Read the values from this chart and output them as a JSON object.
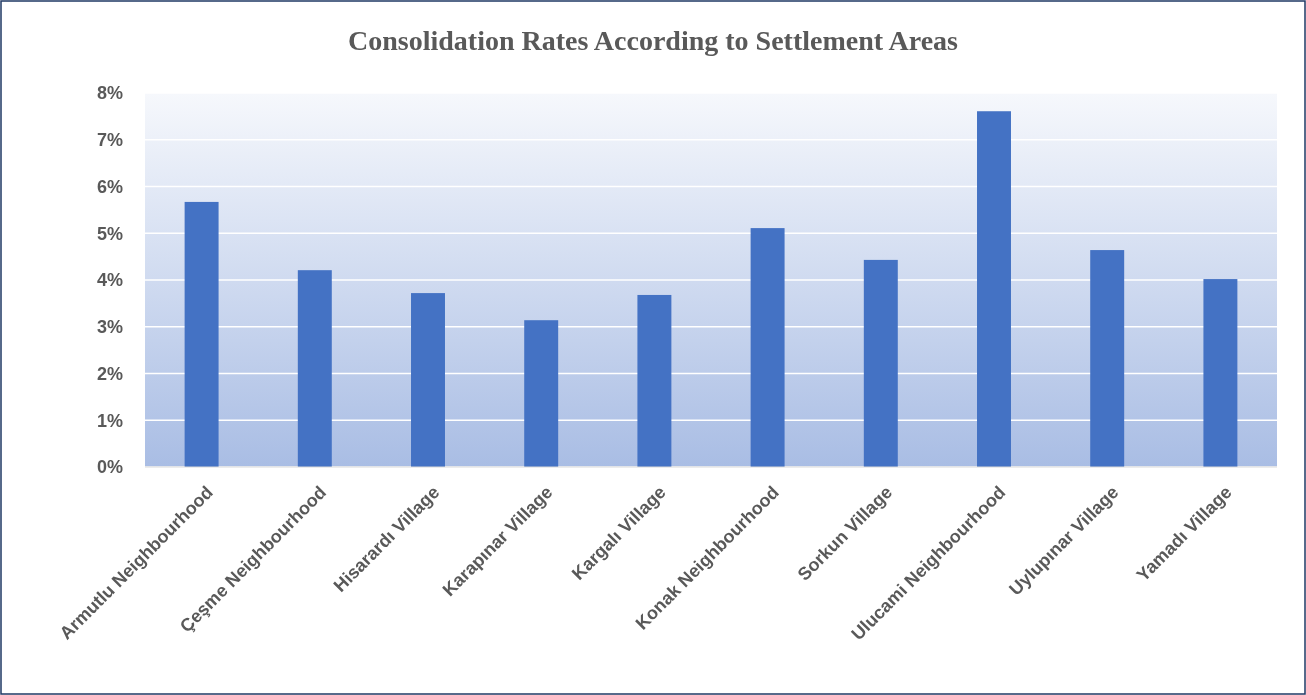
{
  "chart_data": {
    "type": "bar",
    "title": "Consolidation Rates According to Settlement Areas",
    "categories": [
      "Armutlu Neighbourhood",
      "Çeşme Neighbourhood",
      "Hisarardı Village",
      "Karapınar Village",
      "Kargalı Village",
      "Konak Neighbourhood",
      "Sorkun Village",
      "Ulucami Neighbourhood",
      "Uylupınar Village",
      "Yamadı Village"
    ],
    "values": [
      5.67,
      4.21,
      3.72,
      3.14,
      3.68,
      5.11,
      4.43,
      7.61,
      4.64,
      4.02
    ],
    "color": "#4472c4",
    "ylim": [
      0,
      8
    ],
    "yticks": [
      {
        "value": 0,
        "label": "0%"
      },
      {
        "value": 1,
        "label": "1%"
      },
      {
        "value": 2,
        "label": "2%"
      },
      {
        "value": 3,
        "label": "3%"
      },
      {
        "value": 4,
        "label": "4%"
      },
      {
        "value": 5,
        "label": "5%"
      },
      {
        "value": 6,
        "label": "6%"
      },
      {
        "value": 7,
        "label": "7%"
      },
      {
        "value": 8,
        "label": "8%"
      }
    ],
    "grid": "y"
  }
}
